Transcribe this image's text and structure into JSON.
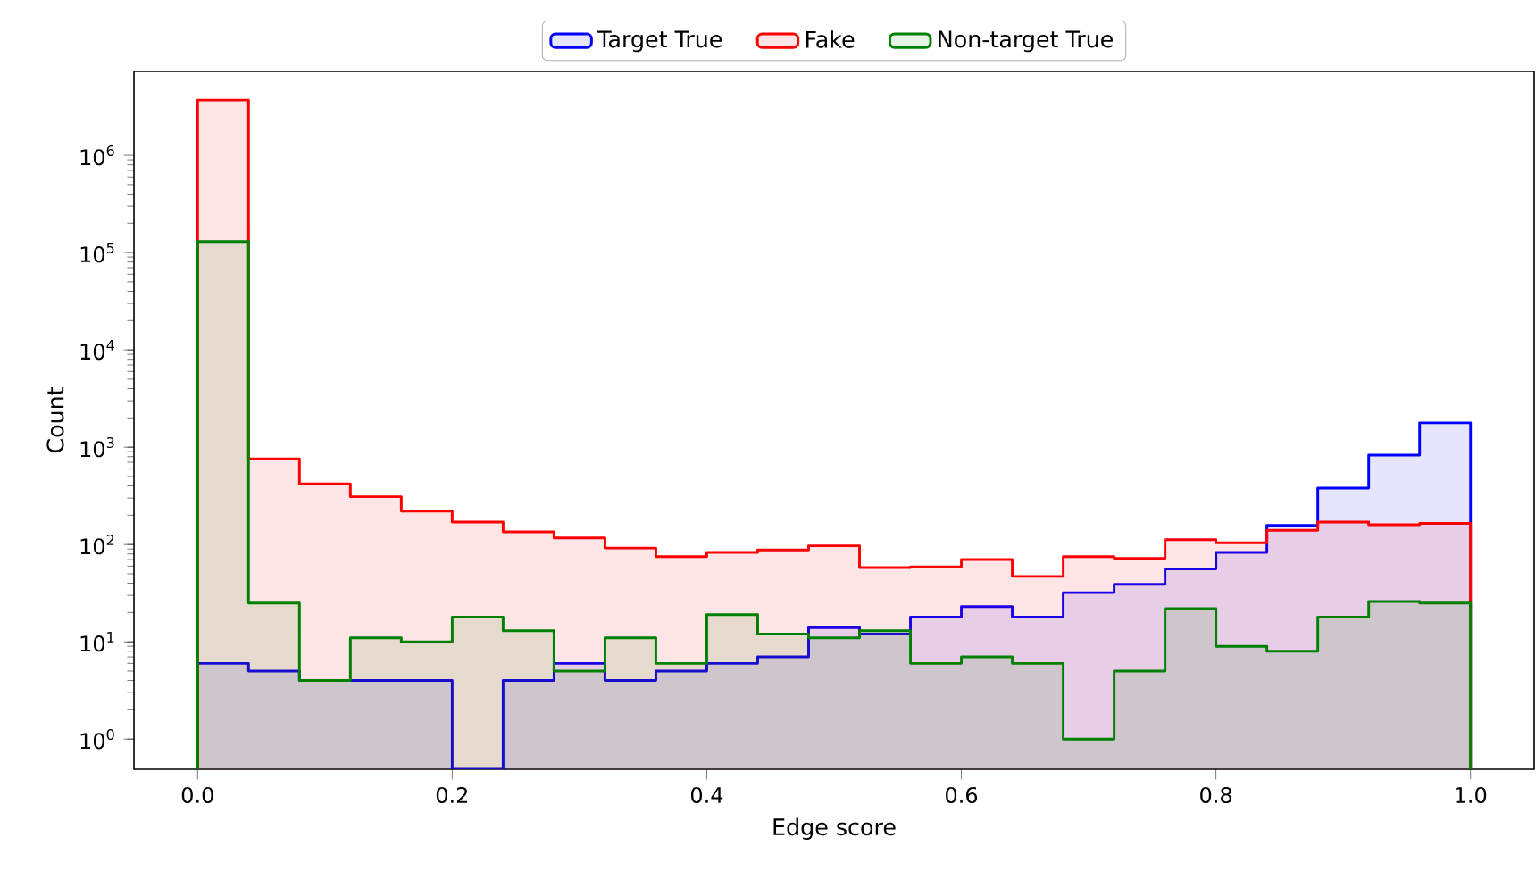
{
  "chart_data": {
    "type": "histogram",
    "xlabel": "Edge score",
    "ylabel": "Count",
    "log": "y",
    "legend": "top",
    "bins": [
      0,
      0.04,
      0.08,
      0.12,
      0.16,
      0.2,
      0.24,
      0.28,
      0.32,
      0.36,
      0.4,
      0.44,
      0.48,
      0.52,
      0.56,
      0.6,
      0.64,
      0.68,
      0.72,
      0.76,
      0.8,
      0.84,
      0.88,
      0.92,
      0.96,
      1.0
    ],
    "xlim": [
      -0.05,
      1.05
    ],
    "xticks": [
      {
        "value": 0,
        "label": "0.0"
      },
      0.2,
      0.4,
      0.6,
      0.8,
      {
        "value": 1,
        "label": "1.0"
      }
    ],
    "ylim": [
      0.49,
      7300000
    ],
    "yticks": [
      {
        "value": 1,
        "label": "10$^{0}$"
      },
      {
        "value": 10,
        "label": "10$^{1}$"
      },
      {
        "value": 100,
        "label": "10$^{2}$"
      },
      {
        "value": 1000,
        "label": "10$^{3}$"
      },
      {
        "value": 10000,
        "label": "10$^{4}$"
      },
      {
        "value": 100000,
        "label": "10$^{5}$"
      },
      {
        "value": 1000000,
        "label": "10$^{6}$"
      }
    ],
    "series": [
      {
        "name": "Target True",
        "color": "#0000ff",
        "values": [
          6,
          5,
          4,
          4,
          4,
          null,
          4,
          6,
          4,
          5,
          6,
          7,
          14,
          12,
          18,
          23,
          18,
          32,
          39,
          56,
          83,
          157,
          380,
          830,
          1780
        ]
      },
      {
        "name": "Fake",
        "color": "#ff0000",
        "values": [
          3700000,
          760,
          420,
          310,
          220,
          170,
          135,
          117,
          92,
          75,
          83,
          88,
          97,
          58,
          59,
          70,
          47,
          75,
          72,
          112,
          104,
          140,
          170,
          160,
          165
        ]
      },
      {
        "name": "Non-target True",
        "color": "#008000",
        "values": [
          130000,
          25,
          4,
          11,
          10,
          18,
          13,
          5,
          11,
          6,
          19,
          12,
          11,
          13,
          6,
          7,
          6,
          1,
          5,
          22,
          9,
          8,
          18,
          26,
          25
        ]
      }
    ]
  }
}
